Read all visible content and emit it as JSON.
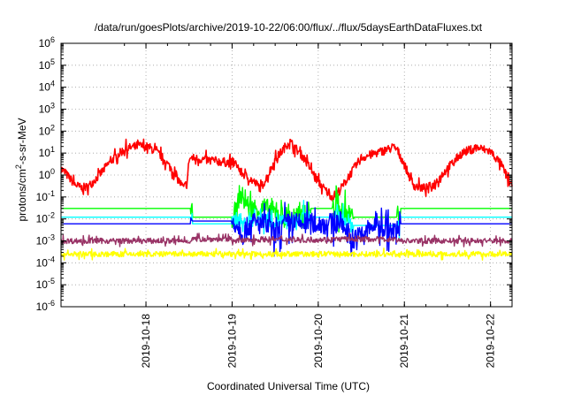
{
  "chart_data": {
    "type": "line",
    "title": "/data/run/goesPlots/archive/2019-10-22/06:00/flux/../flux/5daysEarthDataFluxes.txt",
    "xlabel": "Coordinated Universal Time (UTC)",
    "ylabel": {
      "base": "protons/cm",
      "sup": "2",
      "rest": "-s-sr-MeV"
    },
    "y_scale": "log",
    "ylim": [
      1e-06,
      1000000.0
    ],
    "xlim": [
      "2019-10-17 00:20",
      "2019-10-22 06:00"
    ],
    "grid": true,
    "legend": "none",
    "y_ticks": [
      {
        "base": "10",
        "exp": "-6",
        "value": 1e-06
      },
      {
        "base": "10",
        "exp": "-5",
        "value": 1e-05
      },
      {
        "base": "10",
        "exp": "-4",
        "value": 0.0001
      },
      {
        "base": "10",
        "exp": "-3",
        "value": 0.001
      },
      {
        "base": "10",
        "exp": "-2",
        "value": 0.01
      },
      {
        "base": "10",
        "exp": "-1",
        "value": 0.1
      },
      {
        "base": "10",
        "exp": "0",
        "value": 1
      },
      {
        "base": "10",
        "exp": "1",
        "value": 10
      },
      {
        "base": "10",
        "exp": "2",
        "value": 100
      },
      {
        "base": "10",
        "exp": "3",
        "value": 1000
      },
      {
        "base": "10",
        "exp": "4",
        "value": 10000
      },
      {
        "base": "10",
        "exp": "5",
        "value": 100000
      },
      {
        "base": "10",
        "exp": "6",
        "value": 1000000
      }
    ],
    "x_ticks": [
      "2019-10-18",
      "2019-10-19",
      "2019-10-20",
      "2019-10-21",
      "2019-10-22"
    ],
    "series": [
      {
        "color": "#ff0000",
        "noise": 0.4,
        "points": [
          [
            "2019-10-17 00:20",
            2.0
          ],
          [
            "2019-10-17 02:00",
            1.0
          ],
          [
            "2019-10-17 04:00",
            0.4
          ],
          [
            "2019-10-17 06:00",
            0.25
          ],
          [
            "2019-10-17 08:00",
            0.3
          ],
          [
            "2019-10-17 11:00",
            1.0
          ],
          [
            "2019-10-17 14:00",
            4.0
          ],
          [
            "2019-10-17 18:00",
            15
          ],
          [
            "2019-10-17 22:00",
            22
          ],
          [
            "2019-10-18 01:00",
            18
          ],
          [
            "2019-10-18 04:00",
            8
          ],
          [
            "2019-10-18 07:00",
            2.0
          ],
          [
            "2019-10-18 09:00",
            0.6
          ],
          [
            "2019-10-18 10:30",
            0.25
          ],
          [
            "2019-10-18 11:30",
            0.5
          ],
          [
            "2019-10-18 12:00",
            5.0
          ],
          [
            "2019-10-18 12:30",
            6.0
          ],
          [
            "2019-10-19 00:00",
            3.5
          ],
          [
            "2019-10-19 01:00",
            3.0
          ],
          [
            "2019-10-19 01:30",
            3.0
          ],
          [
            "2019-10-19 02:00",
            1.5
          ],
          [
            "2019-10-19 06:00",
            0.5
          ],
          [
            "2019-10-19 08:00",
            0.25
          ],
          [
            "2019-10-19 10:00",
            1.0
          ],
          [
            "2019-10-19 12:00",
            5.0
          ],
          [
            "2019-10-19 16:00",
            35
          ],
          [
            "2019-10-19 20:00",
            6.0
          ],
          [
            "2019-10-20 00:00",
            0.5
          ],
          [
            "2019-10-20 02:00",
            0.2
          ],
          [
            "2019-10-20 04:00",
            0.1
          ],
          [
            "2019-10-20 06:00",
            0.2
          ],
          [
            "2019-10-20 10:00",
            2.0
          ],
          [
            "2019-10-20 12:00",
            6.0
          ],
          [
            "2019-10-20 21:00",
            18
          ],
          [
            "2019-10-20 22:00",
            14
          ],
          [
            "2019-10-21 00:00",
            3.0
          ],
          [
            "2019-10-21 02:00",
            0.5
          ],
          [
            "2019-10-21 03:00",
            0.3
          ],
          [
            "2019-10-21 06:00",
            0.25
          ],
          [
            "2019-10-21 08:00",
            0.35
          ],
          [
            "2019-10-21 12:00",
            2.0
          ],
          [
            "2019-10-21 16:00",
            10
          ],
          [
            "2019-10-21 20:00",
            18
          ],
          [
            "2019-10-22 00:00",
            12
          ],
          [
            "2019-10-22 03:00",
            3.0
          ],
          [
            "2019-10-22 05:00",
            0.6
          ],
          [
            "2019-10-22 06:00",
            0.3
          ]
        ]
      },
      {
        "color": "#00ff00",
        "noise": 1.0,
        "points": [
          [
            "2019-10-17 00:20",
            0.03
          ],
          [
            "2019-10-18 12:30",
            0.03
          ],
          [
            "2019-10-18 13:00",
            0.012
          ],
          [
            "2019-10-19 00:00",
            0.012
          ],
          [
            "2019-10-19 01:30",
            0.03
          ],
          [
            "2019-10-19 02:00",
            0.15
          ],
          [
            "2019-10-19 05:00",
            0.03
          ],
          [
            "2019-10-19 07:30",
            0.03
          ],
          [
            "2019-10-19 09:00",
            0.03
          ],
          [
            "2019-10-19 15:00",
            0.012
          ],
          [
            "2019-10-19 20:00",
            0.012
          ],
          [
            "2019-10-19 22:00",
            0.03
          ],
          [
            "2019-10-20 04:00",
            0.03
          ],
          [
            "2019-10-20 05:00",
            0.03
          ],
          [
            "2019-10-20 10:00",
            0.012
          ],
          [
            "2019-10-20 22:00",
            0.012
          ],
          [
            "2019-10-20 23:00",
            0.03
          ],
          [
            "2019-10-22 06:00",
            0.03
          ]
        ]
      },
      {
        "color": "#00ffff",
        "noise": 0.8,
        "points": [
          [
            "2019-10-17 00:20",
            0.012
          ],
          [
            "2019-10-18 12:30",
            0.012
          ],
          [
            "2019-10-18 13:00",
            0.006
          ],
          [
            "2019-10-19 00:00",
            0.006
          ],
          [
            "2019-10-19 01:30",
            0.012
          ],
          [
            "2019-10-19 03:00",
            0.005
          ],
          [
            "2019-10-19 06:00",
            0.012
          ],
          [
            "2019-10-19 09:00",
            0.012
          ],
          [
            "2019-10-19 16:00",
            0.006
          ],
          [
            "2019-10-19 22:00",
            0.012
          ],
          [
            "2019-10-20 05:00",
            0.012
          ],
          [
            "2019-10-20 10:00",
            0.005
          ],
          [
            "2019-10-20 22:00",
            0.005
          ],
          [
            "2019-10-20 23:00",
            0.012
          ],
          [
            "2019-10-22 06:00",
            0.012
          ]
        ]
      },
      {
        "color": "#0000ff",
        "noise": 1.0,
        "points": [
          [
            "2019-10-17 00:20",
            0.006
          ],
          [
            "2019-10-18 12:30",
            0.006
          ],
          [
            "2019-10-18 13:00",
            0.008
          ],
          [
            "2019-10-19 00:00",
            0.008
          ],
          [
            "2019-10-19 01:30",
            0.006
          ],
          [
            "2019-10-19 03:00",
            0.002
          ],
          [
            "2019-10-19 05:00",
            0.006
          ],
          [
            "2019-10-19 09:00",
            0.006
          ],
          [
            "2019-10-19 12:00",
            0.002
          ],
          [
            "2019-10-19 15:00",
            0.006
          ],
          [
            "2019-10-19 20:00",
            0.006
          ],
          [
            "2019-10-20 00:00",
            0.006
          ],
          [
            "2019-10-20 04:00",
            0.006
          ],
          [
            "2019-10-20 06:00",
            0.008
          ],
          [
            "2019-10-20 10:00",
            0.001
          ],
          [
            "2019-10-20 16:00",
            0.006
          ],
          [
            "2019-10-20 22:00",
            0.002
          ],
          [
            "2019-10-20 23:00",
            0.006
          ],
          [
            "2019-10-22 06:00",
            0.006
          ]
        ]
      },
      {
        "color": "#993366",
        "noise": 0.25,
        "points": [
          [
            "2019-10-17 00:20",
            0.001
          ],
          [
            "2019-10-18 12:30",
            0.001
          ],
          [
            "2019-10-18 13:00",
            0.0012
          ],
          [
            "2019-10-19 00:00",
            0.0012
          ],
          [
            "2019-10-19 01:30",
            0.001
          ],
          [
            "2019-10-19 05:00",
            0.0011
          ],
          [
            "2019-10-19 09:00",
            0.0012
          ],
          [
            "2019-10-19 20:00",
            0.0011
          ],
          [
            "2019-10-20 05:00",
            0.0012
          ],
          [
            "2019-10-20 22:00",
            0.0012
          ],
          [
            "2019-10-20 23:00",
            0.001
          ],
          [
            "2019-10-22 06:00",
            0.001
          ]
        ]
      },
      {
        "color": "#ffff00",
        "noise": 0.25,
        "points": [
          [
            "2019-10-17 00:20",
            0.00025
          ],
          [
            "2019-10-18 12:30",
            0.00025
          ],
          [
            "2019-10-18 13:00",
            0.00025
          ],
          [
            "2019-10-19 00:00",
            0.00025
          ],
          [
            "2019-10-19 01:30",
            0.00025
          ],
          [
            "2019-10-20 23:00",
            0.00025
          ],
          [
            "2019-10-22 06:00",
            0.00025
          ]
        ]
      }
    ]
  }
}
